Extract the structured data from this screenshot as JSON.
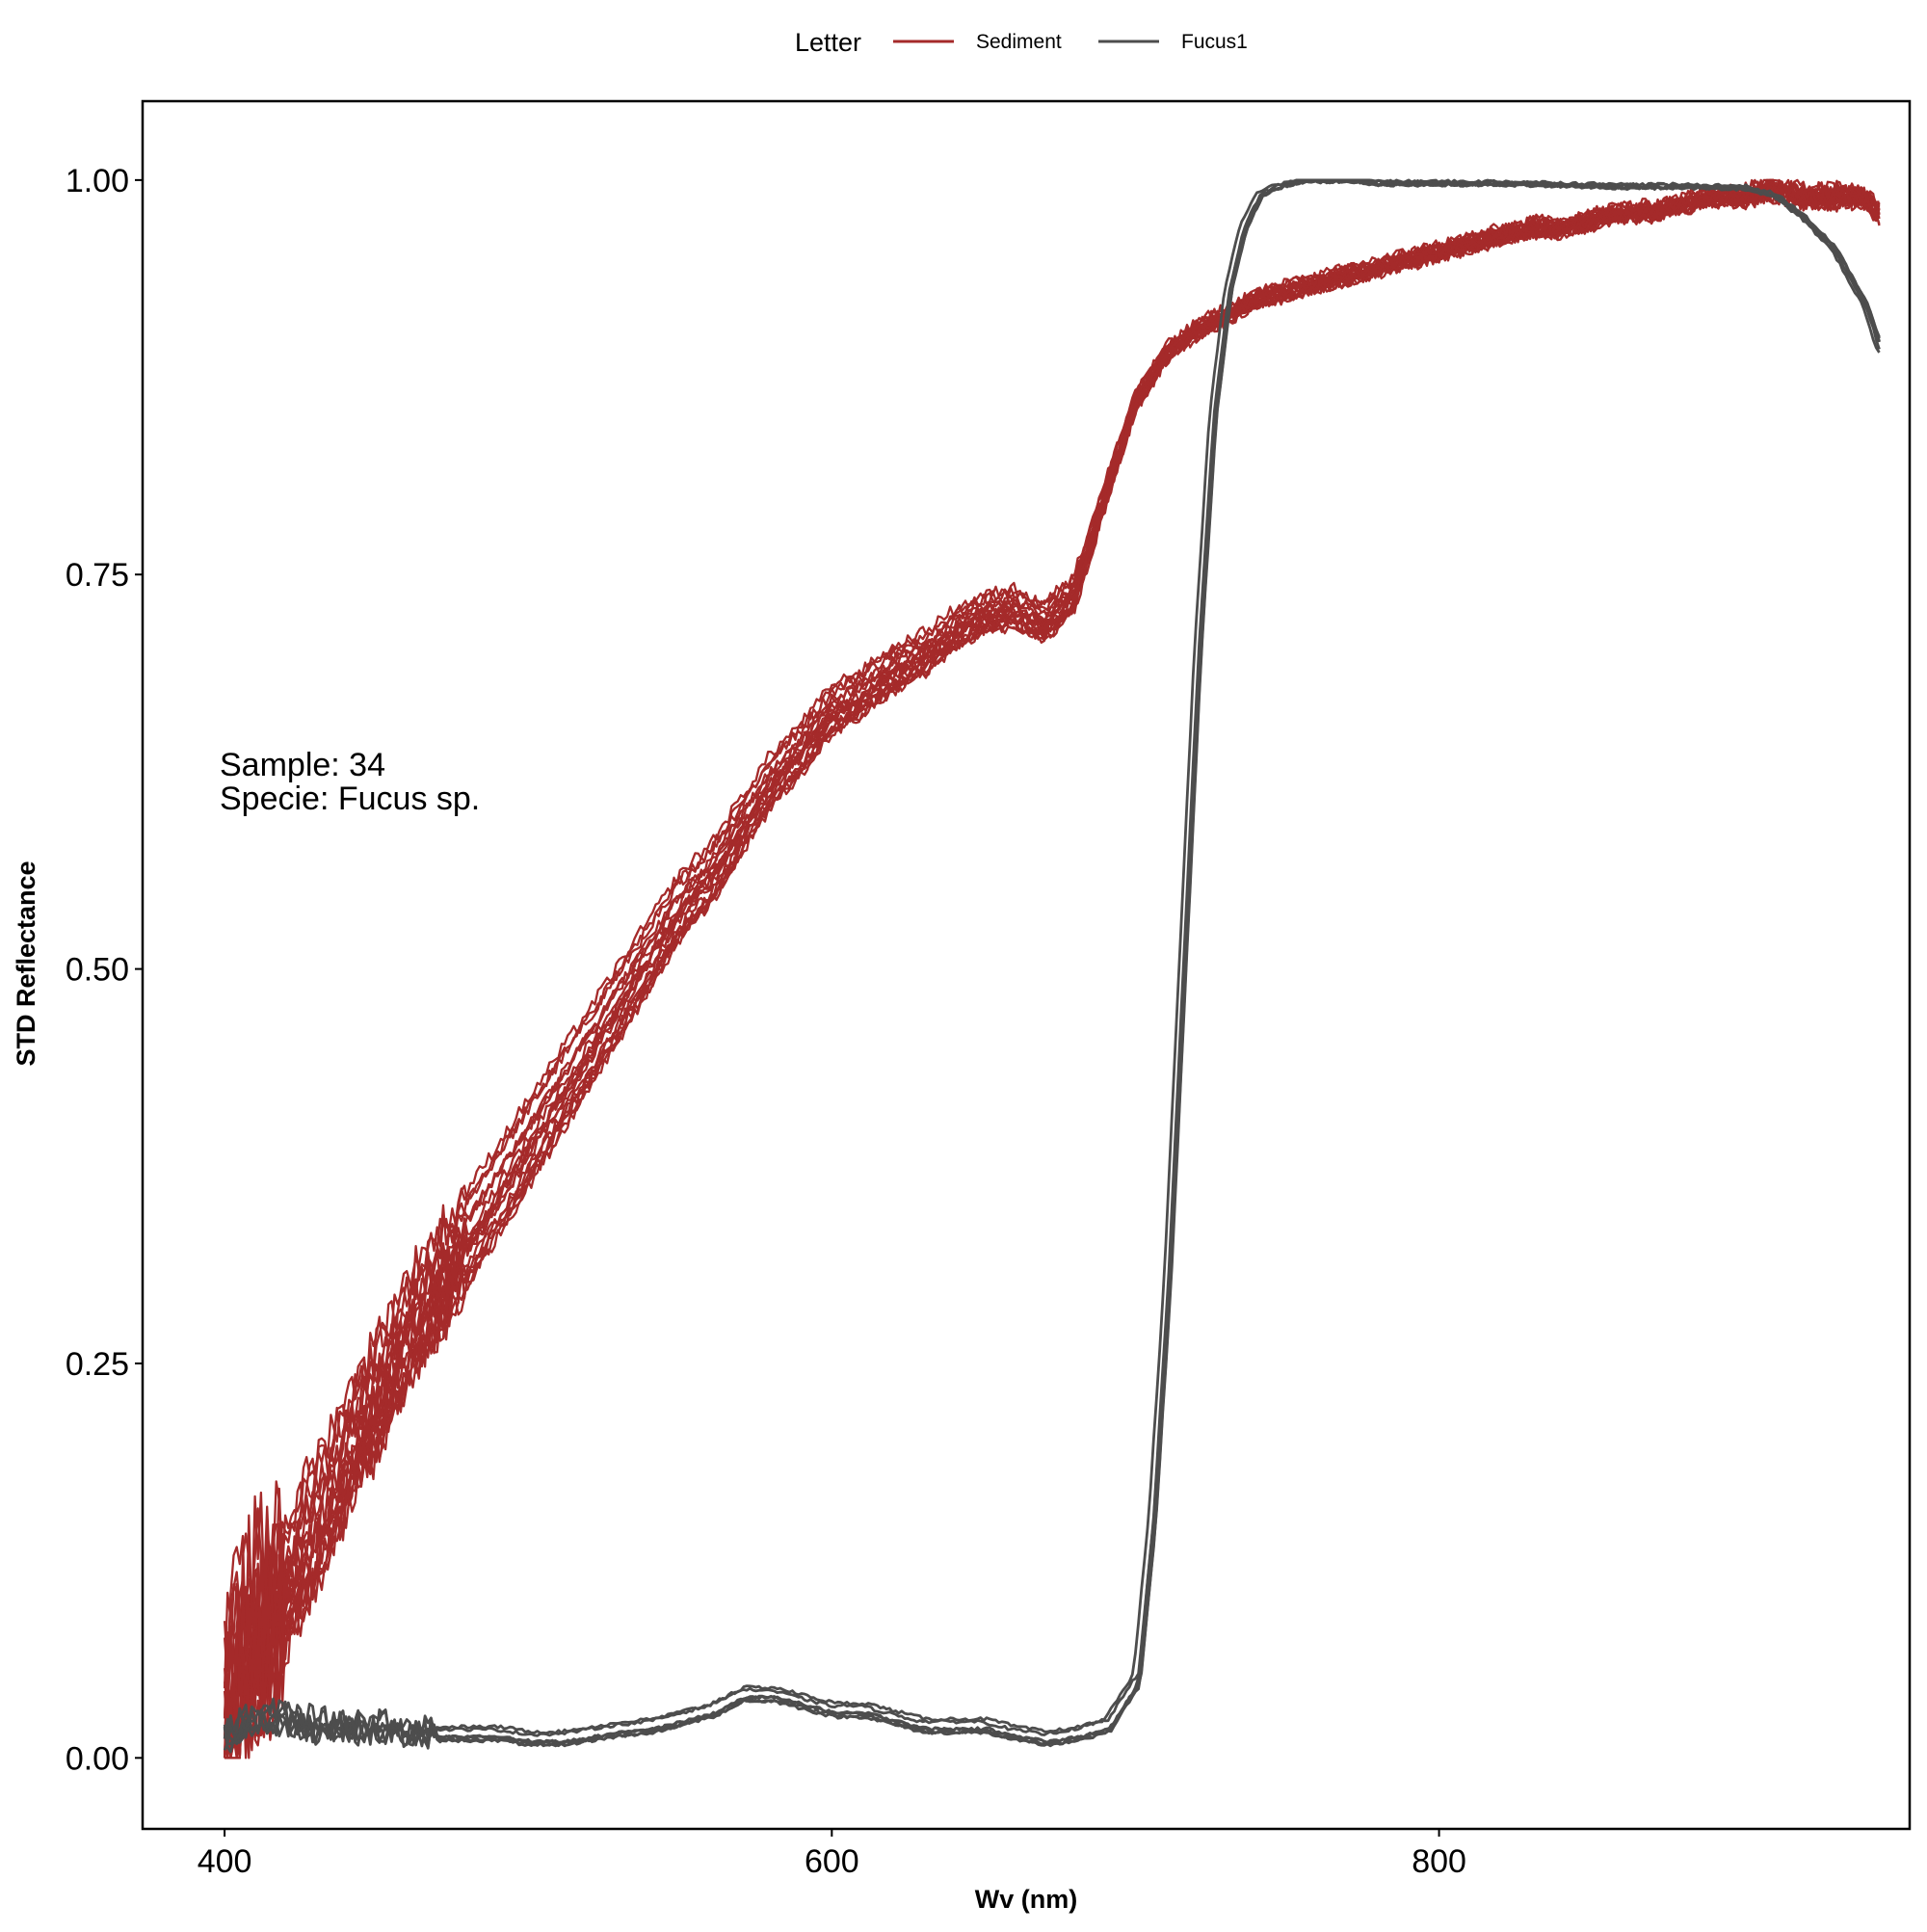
{
  "chart_data": {
    "type": "line",
    "title": "",
    "xlabel": "Wv (nm)",
    "ylabel": "STD Reflectance",
    "xlim": [
      373,
      955
    ],
    "ylim": [
      -0.045,
      1.05
    ],
    "x_ticks": [
      400,
      600,
      800
    ],
    "y_ticks": [
      0.0,
      0.25,
      0.5,
      0.75,
      1.0
    ],
    "y_tick_labels": [
      "0.00",
      "0.25",
      "0.50",
      "0.75",
      "1.00"
    ],
    "grid": false,
    "legend": {
      "title": "Letter",
      "position": "top",
      "entries": [
        "Sediment",
        "Fucus1"
      ]
    },
    "annotations": [
      "Sample: 34",
      "Specie: Fucus sp."
    ],
    "series": [
      {
        "name": "Sediment",
        "color": "#a52a2a",
        "replicates": 20,
        "x": [
          400,
          410,
          420,
          430,
          440,
          450,
          460,
          470,
          480,
          490,
          500,
          510,
          520,
          530,
          540,
          550,
          560,
          570,
          580,
          590,
          600,
          610,
          620,
          630,
          640,
          650,
          660,
          670,
          680,
          690,
          700,
          710,
          720,
          730,
          740,
          750,
          760,
          770,
          780,
          790,
          800,
          810,
          820,
          830,
          840,
          850,
          860,
          870,
          880,
          890,
          900,
          910,
          920,
          930,
          940,
          945
        ],
        "y": [
          0.03,
          0.08,
          0.11,
          0.15,
          0.19,
          0.23,
          0.27,
          0.3,
          0.33,
          0.36,
          0.39,
          0.42,
          0.45,
          0.48,
          0.51,
          0.54,
          0.56,
          0.59,
          0.62,
          0.64,
          0.665,
          0.675,
          0.69,
          0.7,
          0.715,
          0.725,
          0.73,
          0.72,
          0.74,
          0.8,
          0.86,
          0.89,
          0.905,
          0.915,
          0.925,
          0.93,
          0.935,
          0.94,
          0.945,
          0.95,
          0.955,
          0.96,
          0.965,
          0.97,
          0.97,
          0.975,
          0.98,
          0.98,
          0.985,
          0.99,
          0.99,
          0.995,
          0.99,
          0.99,
          0.99,
          0.98
        ]
      },
      {
        "name": "Fucus1",
        "color": "#4d4d4d",
        "replicates": 6,
        "x": [
          400,
          410,
          420,
          430,
          440,
          450,
          460,
          470,
          480,
          490,
          500,
          510,
          520,
          530,
          540,
          550,
          560,
          570,
          580,
          590,
          600,
          610,
          620,
          630,
          640,
          650,
          660,
          670,
          680,
          690,
          700,
          705,
          710,
          715,
          720,
          725,
          730,
          735,
          740,
          745,
          750,
          755,
          760,
          770,
          780,
          800,
          820,
          840,
          860,
          880,
          900,
          910,
          920,
          930,
          940,
          945
        ],
        "y": [
          0.015,
          0.025,
          0.025,
          0.02,
          0.02,
          0.02,
          0.018,
          0.015,
          0.015,
          0.015,
          0.012,
          0.012,
          0.015,
          0.018,
          0.02,
          0.025,
          0.03,
          0.04,
          0.04,
          0.035,
          0.03,
          0.03,
          0.025,
          0.02,
          0.02,
          0.02,
          0.015,
          0.012,
          0.015,
          0.02,
          0.05,
          0.15,
          0.3,
          0.5,
          0.7,
          0.85,
          0.93,
          0.97,
          0.99,
          0.995,
          0.998,
          1.0,
          1.0,
          1.0,
          0.998,
          0.998,
          0.998,
          0.997,
          0.996,
          0.996,
          0.995,
          0.99,
          0.975,
          0.955,
          0.92,
          0.89
        ]
      }
    ]
  }
}
